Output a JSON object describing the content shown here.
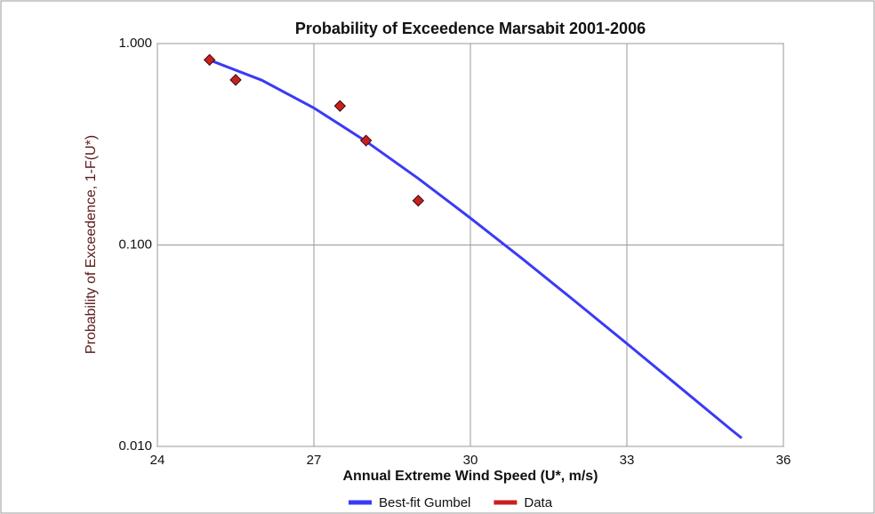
{
  "chart_data": {
    "type": "line",
    "title": "Probability of Exceedence Marsabit 2001-2006",
    "x_label": "Annual Extreme Wind Speed (U*, m/s)",
    "y_label": "Probability of Exceedence, 1-F(U*)",
    "xlim": [
      24,
      36
    ],
    "xticks": [
      24,
      27,
      30,
      33,
      36
    ],
    "ylim": [
      0.01,
      1
    ],
    "log_y": true,
    "yticks": [
      {
        "value": 1,
        "label": "1.000"
      },
      {
        "value": 0.1,
        "label": "0.100"
      },
      {
        "value": 0.01,
        "label": "0.010"
      }
    ],
    "grid": true,
    "legend": "bottom",
    "series": [
      {
        "name": "Best-fit Gumbel",
        "color": "#3a3af5",
        "mode": "line",
        "x": [
          25,
          26,
          27,
          28,
          29,
          30,
          31,
          32,
          33,
          34,
          35,
          35.2
        ],
        "values": [
          0.828,
          0.658,
          0.479,
          0.327,
          0.214,
          0.136,
          0.0853,
          0.0527,
          0.0324,
          0.0198,
          0.0121,
          0.011
        ]
      },
      {
        "name": "Data",
        "color": "#c8201e",
        "mode": "markers",
        "x": [
          25,
          25.5,
          27.5,
          28,
          29
        ],
        "values": [
          0.83,
          0.66,
          0.49,
          0.33,
          0.166
        ]
      }
    ]
  }
}
